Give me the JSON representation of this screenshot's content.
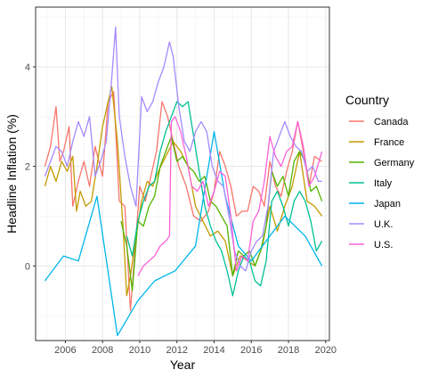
{
  "chart_data": {
    "type": "line",
    "xlabel": "Year",
    "ylabel": "Headline Inflation (%)",
    "xlim": [
      2004.4,
      2020.2
    ],
    "ylim": [
      -1.5,
      5.2
    ],
    "x_ticks": [
      2006,
      2008,
      2010,
      2012,
      2014,
      2016,
      2018,
      2020
    ],
    "x_tick_labels": [
      "2006",
      "2008",
      "2010",
      "2012",
      "2014",
      "2016",
      "2018",
      "2020"
    ],
    "y_ticks": [
      0,
      2,
      4
    ],
    "y_tick_labels": [
      "0",
      "2",
      "4"
    ],
    "grid": true,
    "legend": {
      "title": "Country",
      "position": "right"
    },
    "series": [
      {
        "name": "Canada",
        "color": "#F8766D",
        "x": [
          2004.9,
          2005.2,
          2005.5,
          2005.7,
          2005.9,
          2006.2,
          2006.4,
          2006.7,
          2007.0,
          2007.3,
          2007.6,
          2008.0,
          2008.3,
          2008.6,
          2008.9,
          2009.2,
          2009.5,
          2009.7,
          2010.0,
          2010.3,
          2010.6,
          2010.9,
          2011.2,
          2011.5,
          2011.8,
          2012.1,
          2012.5,
          2012.9,
          2013.3,
          2013.7,
          2014.0,
          2014.3,
          2014.6,
          2014.9,
          2015.2,
          2015.5,
          2015.8,
          2016.1,
          2016.4,
          2016.7,
          2017.0,
          2017.3,
          2017.6,
          2017.9,
          2018.2,
          2018.5,
          2018.8,
          2019.1,
          2019.4,
          2019.8
        ],
        "values": [
          2.0,
          2.4,
          3.2,
          2.1,
          2.3,
          2.8,
          1.2,
          1.7,
          2.1,
          1.6,
          2.4,
          1.8,
          3.3,
          3.5,
          1.3,
          1.2,
          -0.9,
          0.1,
          1.6,
          1.3,
          1.8,
          2.3,
          3.3,
          3.0,
          2.5,
          2.0,
          1.6,
          1.0,
          0.9,
          1.1,
          1.5,
          2.3,
          2.0,
          1.6,
          1.0,
          1.1,
          1.1,
          1.6,
          1.5,
          1.2,
          2.1,
          1.6,
          1.4,
          1.9,
          2.3,
          2.9,
          2.3,
          1.6,
          2.2,
          2.1
        ]
      },
      {
        "name": "France",
        "color": "#C49A00",
        "x": [
          2004.9,
          2005.2,
          2005.5,
          2005.8,
          2006.1,
          2006.4,
          2006.6,
          2006.8,
          2007.1,
          2007.4,
          2007.7,
          2008.0,
          2008.3,
          2008.5,
          2008.8,
          2009.1,
          2009.3,
          2009.5,
          2009.8,
          2010.1,
          2010.4,
          2010.7,
          2011.0,
          2011.4,
          2011.8,
          2012.2,
          2012.6,
          2013.0,
          2013.4,
          2013.8,
          2014.2,
          2014.6,
          2015.0,
          2015.4,
          2015.8,
          2016.2,
          2016.6,
          2017.0,
          2017.4,
          2017.8,
          2018.2,
          2018.6,
          2019.0,
          2019.4,
          2019.8
        ],
        "values": [
          1.6,
          2.0,
          1.7,
          2.1,
          1.9,
          2.2,
          1.1,
          1.5,
          1.2,
          1.3,
          2.0,
          2.8,
          3.3,
          3.6,
          2.5,
          0.8,
          -0.6,
          -0.2,
          0.6,
          1.3,
          1.7,
          1.6,
          1.9,
          2.2,
          2.5,
          2.3,
          2.0,
          1.2,
          0.9,
          0.6,
          0.7,
          0.5,
          -0.2,
          0.2,
          0.1,
          0.0,
          0.4,
          1.2,
          0.7,
          1.2,
          1.6,
          2.3,
          1.3,
          1.2,
          1.0
        ]
      },
      {
        "name": "Germany",
        "color": "#53B400",
        "x": [
          2009.0,
          2009.3,
          2009.6,
          2009.9,
          2010.2,
          2010.5,
          2010.8,
          2011.1,
          2011.4,
          2011.7,
          2012.0,
          2012.3,
          2012.6,
          2012.9,
          2013.2,
          2013.5,
          2013.8,
          2014.1,
          2014.4,
          2014.7,
          2015.0,
          2015.3,
          2015.6,
          2015.9,
          2016.2,
          2016.5,
          2016.8,
          2017.1,
          2017.4,
          2017.7,
          2018.0,
          2018.3,
          2018.6,
          2018.9,
          2019.2,
          2019.5,
          2019.8
        ],
        "values": [
          0.9,
          0.4,
          -0.5,
          0.9,
          0.8,
          1.2,
          1.4,
          2.0,
          2.3,
          2.6,
          2.1,
          2.2,
          2.0,
          1.9,
          1.7,
          1.8,
          1.3,
          1.2,
          1.0,
          0.8,
          -0.2,
          0.3,
          0.2,
          0.3,
          0.0,
          0.3,
          0.8,
          1.9,
          1.6,
          1.8,
          1.4,
          2.1,
          2.3,
          2.1,
          1.5,
          1.6,
          1.3
        ]
      },
      {
        "name": "Italy",
        "color": "#00C094",
        "x": [
          2009.3,
          2009.6,
          2009.9,
          2010.2,
          2010.5,
          2010.8,
          2011.1,
          2011.4,
          2011.7,
          2012.0,
          2012.3,
          2012.6,
          2012.9,
          2013.2,
          2013.5,
          2013.8,
          2014.1,
          2014.4,
          2014.7,
          2015.0,
          2015.3,
          2015.6,
          2015.9,
          2016.2,
          2016.5,
          2016.8,
          2017.1,
          2017.4,
          2017.7,
          2018.0,
          2018.3,
          2018.6,
          2018.9,
          2019.2,
          2019.5,
          2019.8
        ],
        "values": [
          0.6,
          0.2,
          0.9,
          1.3,
          1.6,
          1.7,
          2.3,
          2.7,
          3.0,
          3.3,
          3.2,
          3.3,
          2.6,
          1.9,
          1.2,
          0.8,
          0.5,
          0.3,
          -0.1,
          -0.6,
          -0.1,
          0.2,
          0.1,
          -0.3,
          -0.4,
          0.1,
          1.3,
          1.5,
          1.2,
          0.8,
          1.3,
          1.5,
          1.3,
          0.9,
          0.3,
          0.5
        ]
      },
      {
        "name": "Japan",
        "color": "#00B6EB",
        "x": [
          2004.9,
          2005.9,
          2006.7,
          2007.7,
          2008.8,
          2009.9,
          2010.8,
          2011.9,
          2013.0,
          2014.0,
          2014.6,
          2015.3,
          2016.0,
          2017.0,
          2017.8,
          2018.9,
          2019.8
        ],
        "values": [
          -0.3,
          0.2,
          0.1,
          1.4,
          -1.4,
          -0.7,
          -0.3,
          -0.1,
          0.4,
          2.7,
          1.4,
          0.4,
          0.1,
          0.6,
          1.0,
          0.6,
          0.0
        ]
      },
      {
        "name": "U.K.",
        "color": "#A58AFF",
        "x": [
          2004.9,
          2005.2,
          2005.5,
          2005.8,
          2006.1,
          2006.4,
          2006.7,
          2007.0,
          2007.3,
          2007.6,
          2007.9,
          2008.2,
          2008.5,
          2008.7,
          2008.9,
          2009.2,
          2009.5,
          2009.8,
          2010.1,
          2010.4,
          2010.7,
          2011.0,
          2011.3,
          2011.6,
          2011.8,
          2012.1,
          2012.4,
          2012.7,
          2013.0,
          2013.3,
          2013.6,
          2013.9,
          2014.2,
          2014.5,
          2014.8,
          2015.1,
          2015.4,
          2015.7,
          2016.0,
          2016.3,
          2016.6,
          2016.9,
          2017.2,
          2017.5,
          2017.8,
          2018.1,
          2018.4,
          2018.7,
          2019.0,
          2019.3,
          2019.6,
          2019.8
        ],
        "values": [
          1.8,
          2.1,
          2.4,
          2.3,
          2.0,
          2.5,
          2.9,
          2.6,
          3.0,
          1.8,
          2.1,
          2.5,
          3.8,
          4.8,
          3.0,
          2.2,
          1.6,
          1.2,
          3.4,
          3.1,
          3.3,
          3.7,
          4.0,
          4.5,
          4.2,
          3.2,
          2.5,
          2.3,
          2.7,
          2.9,
          2.7,
          2.0,
          1.7,
          1.6,
          1.0,
          0.3,
          0.0,
          -0.1,
          0.3,
          0.5,
          0.6,
          1.2,
          2.3,
          2.6,
          2.9,
          2.6,
          2.4,
          2.3,
          1.9,
          2.0,
          1.7,
          1.7
        ]
      },
      {
        "name": "U.S.",
        "color": "#FB61D7",
        "x": [
          2009.9,
          2010.2,
          2010.5,
          2010.8,
          2011.1,
          2011.4,
          2011.6,
          2011.7,
          2011.9,
          2012.2,
          2012.5,
          2012.8,
          2013.1,
          2013.4,
          2013.7,
          2014.0,
          2014.3,
          2014.6,
          2014.9,
          2015.2,
          2015.5,
          2015.8,
          2016.1,
          2016.4,
          2016.7,
          2017.0,
          2017.3,
          2017.6,
          2017.9,
          2018.2,
          2018.5,
          2018.8,
          2019.1,
          2019.4,
          2019.8
        ],
        "values": [
          -0.2,
          0.0,
          0.1,
          0.2,
          0.4,
          0.5,
          0.6,
          2.9,
          3.0,
          2.7,
          2.2,
          1.6,
          1.5,
          1.7,
          1.2,
          1.5,
          1.9,
          1.8,
          1.0,
          -0.1,
          0.2,
          0.1,
          0.9,
          1.1,
          1.7,
          2.6,
          2.2,
          2.0,
          2.3,
          2.4,
          2.9,
          2.4,
          1.6,
          1.8,
          2.3
        ]
      }
    ]
  }
}
